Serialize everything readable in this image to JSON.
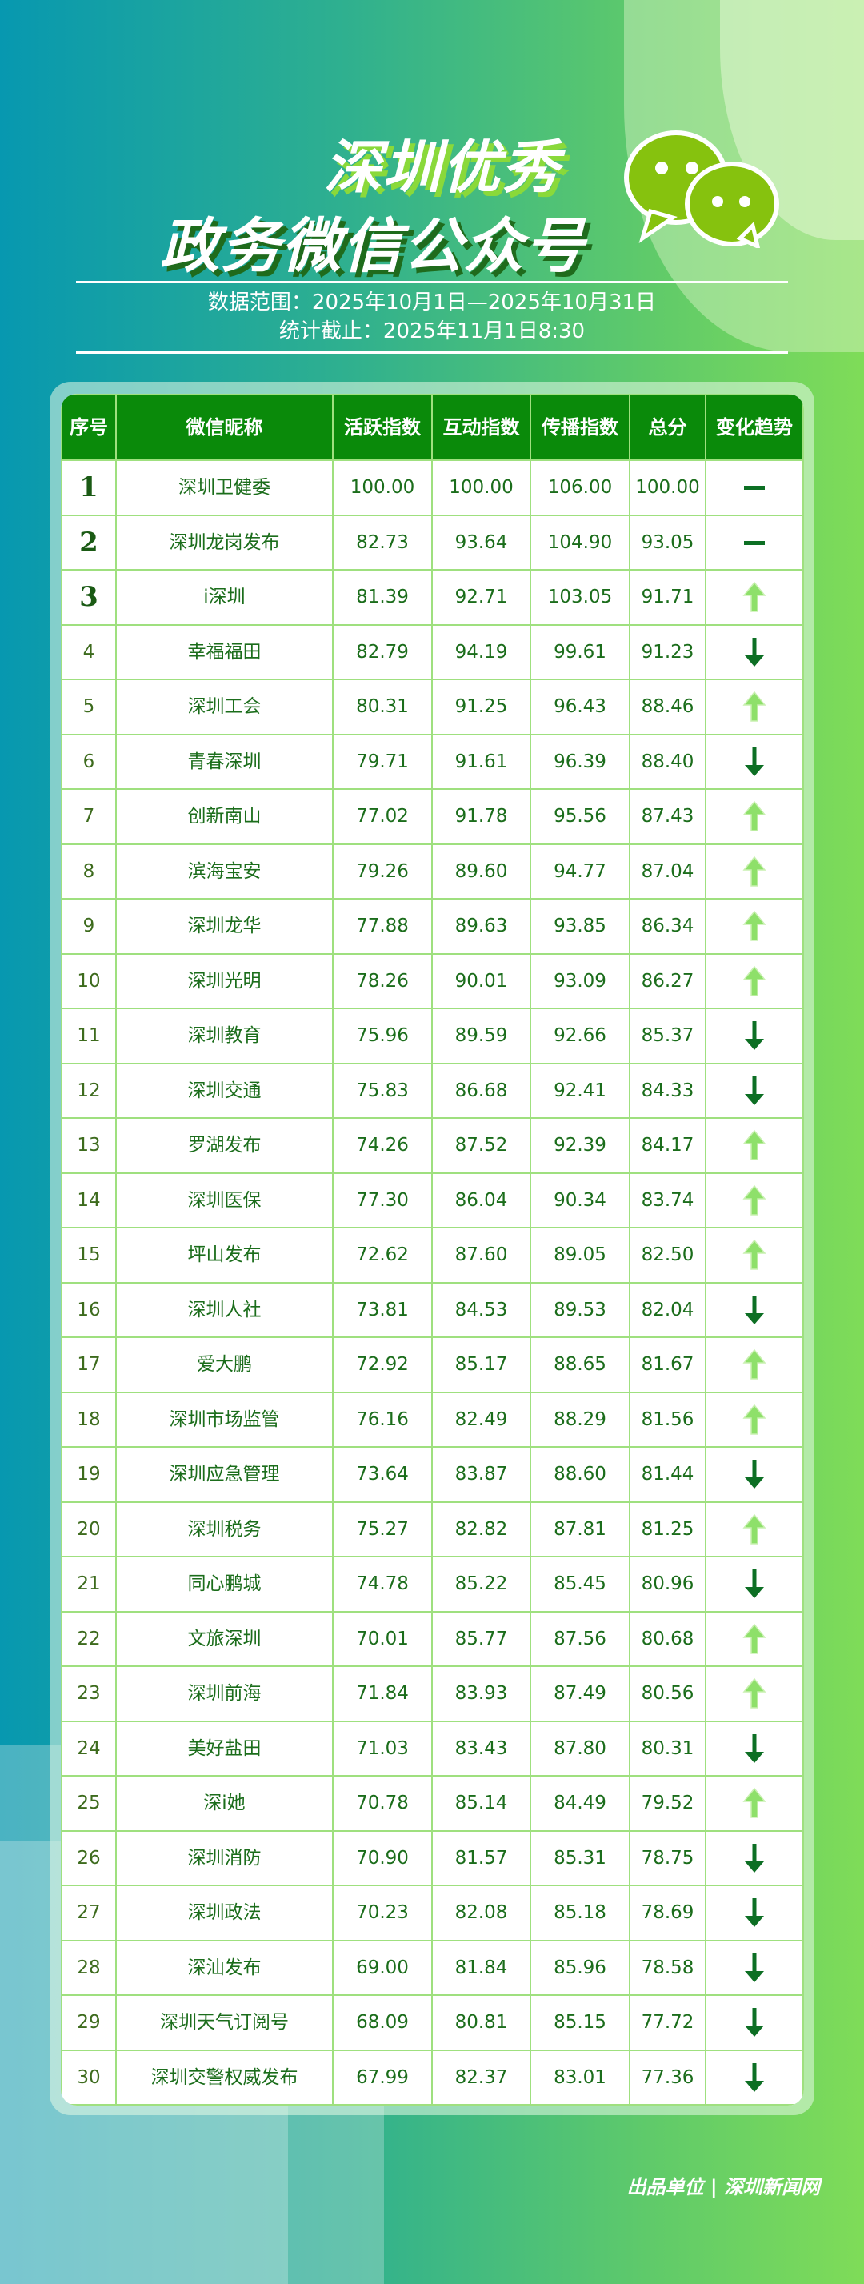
{
  "header": {
    "title_line1": "深圳优秀",
    "title_line2": "政务微信公众号",
    "icon": "wechat-icon",
    "date_range": "数据范围：2025年10月1日—2025年10月31日",
    "cutoff": "统计截止：2025年11月1日8:30"
  },
  "colors": {
    "header_bg": "#0a8a0a",
    "text": "#1b6d1b",
    "grid": "#9fe07f",
    "up": "#8ee06a",
    "down": "#0d6f24"
  },
  "table": {
    "columns": [
      "序号",
      "微信昵称",
      "活跃指数",
      "互动指数",
      "传播指数",
      "总分",
      "变化趋势"
    ],
    "rows": [
      [
        "1",
        "深圳卫健委",
        "100.00",
        "100.00",
        "106.00",
        "100.00",
        "flat"
      ],
      [
        "2",
        "深圳龙岗发布",
        "82.73",
        "93.64",
        "104.90",
        "93.05",
        "flat"
      ],
      [
        "3",
        "i深圳",
        "81.39",
        "92.71",
        "103.05",
        "91.71",
        "up"
      ],
      [
        "4",
        "幸福福田",
        "82.79",
        "94.19",
        "99.61",
        "91.23",
        "down"
      ],
      [
        "5",
        "深圳工会",
        "80.31",
        "91.25",
        "96.43",
        "88.46",
        "up"
      ],
      [
        "6",
        "青春深圳",
        "79.71",
        "91.61",
        "96.39",
        "88.40",
        "down"
      ],
      [
        "7",
        "创新南山",
        "77.02",
        "91.78",
        "95.56",
        "87.43",
        "up"
      ],
      [
        "8",
        "滨海宝安",
        "79.26",
        "89.60",
        "94.77",
        "87.04",
        "up"
      ],
      [
        "9",
        "深圳龙华",
        "77.88",
        "89.63",
        "93.85",
        "86.34",
        "up"
      ],
      [
        "10",
        "深圳光明",
        "78.26",
        "90.01",
        "93.09",
        "86.27",
        "up"
      ],
      [
        "11",
        "深圳教育",
        "75.96",
        "89.59",
        "92.66",
        "85.37",
        "down"
      ],
      [
        "12",
        "深圳交通",
        "75.83",
        "86.68",
        "92.41",
        "84.33",
        "down"
      ],
      [
        "13",
        "罗湖发布",
        "74.26",
        "87.52",
        "92.39",
        "84.17",
        "up"
      ],
      [
        "14",
        "深圳医保",
        "77.30",
        "86.04",
        "90.34",
        "83.74",
        "up"
      ],
      [
        "15",
        "坪山发布",
        "72.62",
        "87.60",
        "89.05",
        "82.50",
        "up"
      ],
      [
        "16",
        "深圳人社",
        "73.81",
        "84.53",
        "89.53",
        "82.04",
        "down"
      ],
      [
        "17",
        "爱大鹏",
        "72.92",
        "85.17",
        "88.65",
        "81.67",
        "up"
      ],
      [
        "18",
        "深圳市场监管",
        "76.16",
        "82.49",
        "88.29",
        "81.56",
        "up"
      ],
      [
        "19",
        "深圳应急管理",
        "73.64",
        "83.87",
        "88.60",
        "81.44",
        "down"
      ],
      [
        "20",
        "深圳税务",
        "75.27",
        "82.82",
        "87.81",
        "81.25",
        "up"
      ],
      [
        "21",
        "同心鹏城",
        "74.78",
        "85.22",
        "85.45",
        "80.96",
        "down"
      ],
      [
        "22",
        "文旅深圳",
        "70.01",
        "85.77",
        "87.56",
        "80.68",
        "up"
      ],
      [
        "23",
        "深圳前海",
        "71.84",
        "83.93",
        "87.49",
        "80.56",
        "up"
      ],
      [
        "24",
        "美好盐田",
        "71.03",
        "83.43",
        "87.80",
        "80.31",
        "down"
      ],
      [
        "25",
        "深i她",
        "70.78",
        "85.14",
        "84.49",
        "79.52",
        "up"
      ],
      [
        "26",
        "深圳消防",
        "70.90",
        "81.57",
        "85.31",
        "78.75",
        "down"
      ],
      [
        "27",
        "深圳政法",
        "70.23",
        "82.08",
        "85.18",
        "78.69",
        "down"
      ],
      [
        "28",
        "深汕发布",
        "69.00",
        "81.84",
        "85.96",
        "78.58",
        "down"
      ],
      [
        "29",
        "深圳天气订阅号",
        "68.09",
        "80.81",
        "85.15",
        "77.72",
        "down"
      ],
      [
        "30",
        "深圳交警权威发布",
        "67.99",
        "82.37",
        "83.01",
        "77.36",
        "down"
      ]
    ]
  },
  "footer": {
    "credit": "出品单位 | 深圳新闻网"
  }
}
